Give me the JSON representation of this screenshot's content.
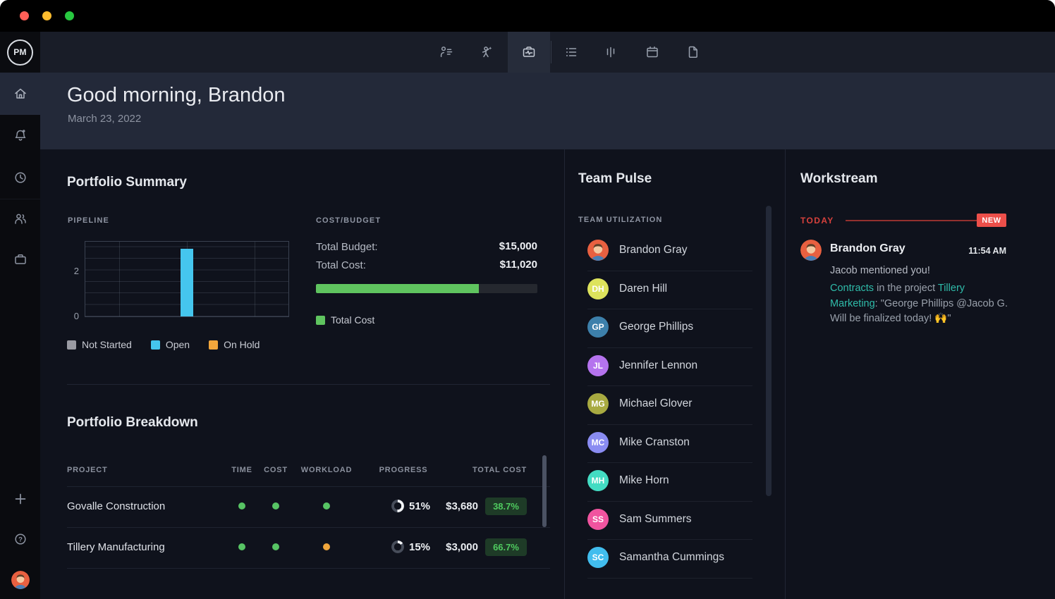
{
  "window": {
    "traffic_lights": {
      "close": "#ff5f57",
      "minimize": "#febc2e",
      "zoom": "#28c840"
    }
  },
  "chrome": {
    "logo": "PM",
    "icons": [
      "team",
      "workload",
      "portfolio",
      "list",
      "board",
      "calendar",
      "reports"
    ],
    "active_icon": "portfolio"
  },
  "sidebar": {
    "icons": [
      "home",
      "notifications",
      "recent",
      "team",
      "projects",
      "add",
      "help",
      "profile"
    ],
    "active_icon": "home"
  },
  "header": {
    "greeting": "Good morning, Brandon",
    "date": "March 23, 2022"
  },
  "main": {
    "summary_title": "Portfolio Summary",
    "breakdown_title": "Portfolio Breakdown"
  },
  "chart_data": [
    {
      "type": "bar",
      "title": "PIPELINE",
      "categories": [
        "Not Started",
        "Open",
        "On Hold"
      ],
      "values": [
        0,
        3,
        0
      ],
      "colors": [
        "#9a9ba3",
        "#45c6ee",
        "#f2a63c"
      ],
      "ylim": [
        0,
        3.3
      ],
      "yticks": [
        0,
        2
      ],
      "grid": true,
      "legend_position": "bottom"
    },
    {
      "type": "bar",
      "title": "COST/BUDGET",
      "items": [
        {
          "label": "Total Budget:",
          "value": 15000,
          "display": "$15,000"
        },
        {
          "label": "Total Cost:",
          "value": 11020,
          "display": "$11,020"
        }
      ],
      "bar": {
        "fill_pct": 73.5,
        "color": "#5fc45f",
        "legend": "Total Cost"
      }
    }
  ],
  "status_colors": {
    "green": "#57c464",
    "orange": "#f0a63c"
  },
  "portfolio_breakdown": {
    "columns": [
      "PROJECT",
      "TIME",
      "COST",
      "WORKLOAD",
      "PROGRESS",
      "TOTAL COST"
    ],
    "rows": [
      {
        "project": "Govalle Construction",
        "time_status": "green",
        "cost_status": "green",
        "workload_status": "green",
        "progress_pct": 51,
        "progress_label": "51%",
        "total_cost": "$3,680",
        "budget_pct": "38.7%"
      },
      {
        "project": "Tillery Manufacturing",
        "time_status": "green",
        "cost_status": "green",
        "workload_status": "orange",
        "progress_pct": 15,
        "progress_label": "15%",
        "total_cost": "$3,000",
        "budget_pct": "66.7%"
      }
    ]
  },
  "team_pulse": {
    "title": "Team Pulse",
    "subtitle": "TEAM UTILIZATION",
    "members": [
      {
        "name": "Brandon Gray",
        "avatar": "cartoon-man",
        "color": "#e86040"
      },
      {
        "name": "Daren Hill",
        "initials": "DH",
        "color": "#dde35c"
      },
      {
        "name": "George Phillips",
        "initials": "GP",
        "color": "#3d80ab"
      },
      {
        "name": "Jennifer Lennon",
        "initials": "JL",
        "color": "#b573ee"
      },
      {
        "name": "Michael Glover",
        "initials": "MG",
        "color": "#a8aa41"
      },
      {
        "name": "Mike Cranston",
        "initials": "MC",
        "color": "#8a8cf2"
      },
      {
        "name": "Mike Horn",
        "initials": "MH",
        "color": "#43dcc3"
      },
      {
        "name": "Sam Summers",
        "initials": "SS",
        "color": "#f0549f"
      },
      {
        "name": "Samantha Cummings",
        "initials": "SC",
        "color": "#41bdee"
      }
    ]
  },
  "workstream": {
    "title": "Workstream",
    "timeline_label": "TODAY",
    "badge": "NEW",
    "entry": {
      "author": "Brandon Gray",
      "time": "11:54 AM",
      "headline": "Jacob mentioned you!",
      "link1": "Contracts",
      "mid": " in the project ",
      "link2": "Tillery Marketing",
      "tail": ": \"George Phillips @Jacob G. Will be finalized today! 🙌\""
    }
  }
}
